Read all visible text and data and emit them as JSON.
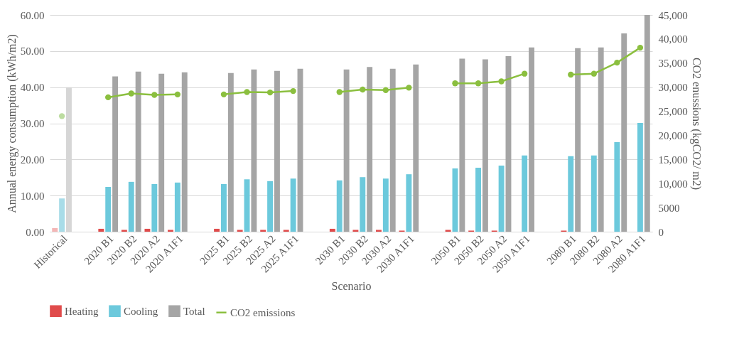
{
  "chart_data": {
    "type": "bar",
    "xlabel": "Scenario",
    "ylabel": "Annual energy consumption (kWh/m2)",
    "y2label": "CO2 enussions (kgCO2/ m2)",
    "categories": [
      "Historical",
      null,
      "2020 B1",
      "2020 B2",
      "2020 A2",
      "2020 A1F1",
      null,
      "2025 B1",
      "2025 B2",
      "2025 A2",
      "2025 A1F1",
      null,
      "2030 B1",
      "2030 B2",
      "2030 A2",
      "2030 A1F1",
      null,
      "2050 B1",
      "2050 B2",
      "2050 A2",
      "2050 A1F1",
      null,
      "2080 B1",
      "2080 B2",
      "2080 A2",
      "2080 A1F1"
    ],
    "series": [
      {
        "name": "Heating",
        "type": "bar",
        "color": "#e04b4b",
        "colors": [
          "#f4b6b6",
          null,
          "#e04b4b",
          "#e04b4b",
          "#e04b4b",
          "#e04b4b",
          null,
          "#e04b4b",
          "#e04b4b",
          "#e04b4b",
          "#e04b4b",
          null,
          "#e04b4b",
          "#e04b4b",
          "#e04b4b",
          "#e04b4b",
          null,
          "#e04b4b",
          "#e04b4b",
          "#e04b4b",
          "#e04b4b",
          null,
          "#e04b4b",
          "#e04b4b",
          "#e04b4b",
          "#e04b4b"
        ],
        "values": [
          1.0,
          null,
          0.8,
          0.5,
          0.8,
          0.5,
          null,
          0.8,
          0.5,
          0.5,
          0.5,
          null,
          0.8,
          0.5,
          0.5,
          0.3,
          null,
          0.5,
          0.3,
          0.3,
          0,
          null,
          0.3,
          0,
          0,
          0
        ]
      },
      {
        "name": "Cooling",
        "type": "bar",
        "color": "#6cc9dc",
        "colors": [
          "#a8dce8",
          null,
          "#6cc9dc",
          "#6cc9dc",
          "#6cc9dc",
          "#6cc9dc",
          null,
          "#6cc9dc",
          "#6cc9dc",
          "#6cc9dc",
          "#6cc9dc",
          null,
          "#6cc9dc",
          "#6cc9dc",
          "#6cc9dc",
          "#6cc9dc",
          null,
          "#6cc9dc",
          "#6cc9dc",
          "#6cc9dc",
          "#6cc9dc",
          null,
          "#6cc9dc",
          "#6cc9dc",
          "#6cc9dc",
          "#6cc9dc"
        ],
        "values": [
          9.2,
          null,
          12.4,
          13.8,
          13.2,
          13.6,
          null,
          13.2,
          14.5,
          14.0,
          14.7,
          null,
          14.2,
          15.1,
          14.7,
          15.9,
          null,
          17.5,
          17.7,
          18.3,
          21.1,
          null,
          20.9,
          21.1,
          24.8,
          30.1
        ]
      },
      {
        "name": "Total",
        "type": "bar",
        "color": "#a5a5a5",
        "colors": [
          "#d6d6d6",
          null,
          "#a5a5a5",
          "#a5a5a5",
          "#a5a5a5",
          "#a5a5a5",
          null,
          "#a5a5a5",
          "#a5a5a5",
          "#a5a5a5",
          "#a5a5a5",
          null,
          "#a5a5a5",
          "#a5a5a5",
          "#a5a5a5",
          "#a5a5a5",
          null,
          "#a5a5a5",
          "#a5a5a5",
          "#a5a5a5",
          "#a5a5a5",
          null,
          "#a5a5a5",
          "#a5a5a5",
          "#a5a5a5",
          "#a5a5a5"
        ],
        "values": [
          40.0,
          null,
          43.0,
          44.3,
          43.7,
          44.1,
          null,
          43.9,
          44.9,
          44.5,
          45.1,
          null,
          44.9,
          45.6,
          45.1,
          46.3,
          null,
          47.9,
          47.7,
          48.6,
          51.0,
          null,
          50.8,
          51.0,
          54.9,
          60.0
        ]
      },
      {
        "name": "CO2 emissions",
        "type": "line",
        "axis": "y2",
        "marker": "circle",
        "line_style": "solid",
        "color": "#8bbf3f",
        "colors": [
          "#bcdca0",
          null,
          "#8bbf3f",
          "#8bbf3f",
          "#8bbf3f",
          "#8bbf3f",
          null,
          "#8bbf3f",
          "#8bbf3f",
          "#8bbf3f",
          "#8bbf3f",
          null,
          "#8bbf3f",
          "#8bbf3f",
          "#8bbf3f",
          "#8bbf3f",
          null,
          "#8bbf3f",
          "#8bbf3f",
          "#8bbf3f",
          "#8bbf3f",
          null,
          "#8bbf3f",
          "#8bbf3f",
          "#8bbf3f",
          "#8bbf3f"
        ],
        "values": [
          24000,
          null,
          27900,
          28700,
          28400,
          28500,
          null,
          28500,
          29000,
          28900,
          29200,
          null,
          29000,
          29500,
          29400,
          29900,
          null,
          30800,
          30800,
          31200,
          32800,
          null,
          32600,
          32800,
          35100,
          38200
        ]
      }
    ],
    "ylim": [
      0,
      60
    ],
    "yticks": [
      {
        "value": 0,
        "label": "0.00"
      },
      {
        "value": 10,
        "label": "10.00"
      },
      {
        "value": 20,
        "label": "20.00"
      },
      {
        "value": 30,
        "label": "30.00"
      },
      {
        "value": 40,
        "label": "40.00"
      },
      {
        "value": 50,
        "label": "50.00"
      },
      {
        "value": 60,
        "label": "60.00"
      }
    ],
    "y2lim": [
      0,
      45000
    ],
    "y2ticks": [
      0,
      5000,
      {
        "value": 10000,
        "label": "10,000"
      },
      {
        "value": 15000,
        "label": "15,000"
      },
      {
        "value": 20000,
        "label": "20,000"
      },
      {
        "value": 25000,
        "label": "25,000"
      },
      {
        "value": 30000,
        "label": "30,000"
      },
      {
        "value": 35000,
        "label": "35,000"
      },
      {
        "value": 40000,
        "label": "40,000"
      },
      {
        "value": 45000,
        "label": "45,000"
      }
    ],
    "grid": "y",
    "legend": "bottom"
  }
}
